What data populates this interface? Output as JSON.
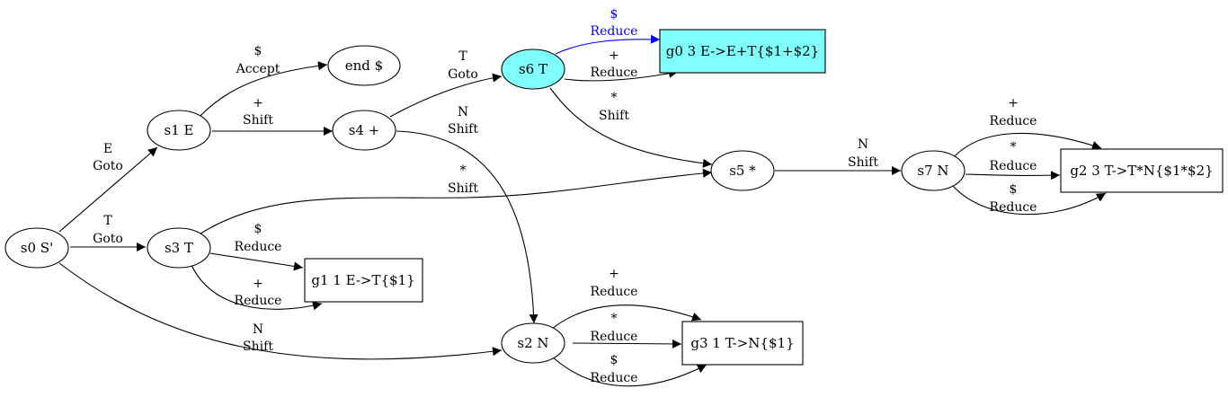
{
  "colors": {
    "highlight_fill": "#80FFFF",
    "highlight_edge": "#0000FF",
    "default_stroke": "#000000",
    "background": "#FFFFFF"
  },
  "nodes": {
    "s0": "s0 S'",
    "s1": "s1 E",
    "s3": "s3 T",
    "s4": "s4 +",
    "s6": "s6 T",
    "s5": "s5 *",
    "s7": "s7 N",
    "s2": "s2 N",
    "end": "end $",
    "g0": "g0 3 E->E+T{$1+$2}",
    "g1": "g1 1 E->T{$1}",
    "g2": "g2 3 T->T*N{$1*$2}",
    "g3": "g3 1 T->N{$1}"
  },
  "edges": {
    "s0_s1": {
      "symbol": "E",
      "action": "Goto"
    },
    "s0_s3": {
      "symbol": "T",
      "action": "Goto"
    },
    "s0_s2": {
      "symbol": "N",
      "action": "Shift"
    },
    "s1_end": {
      "symbol": "$",
      "action": "Accept"
    },
    "s1_s4": {
      "symbol": "+",
      "action": "Shift"
    },
    "s4_s6": {
      "symbol": "T",
      "action": "Goto"
    },
    "s4_s2": {
      "symbol": "N",
      "action": "Shift"
    },
    "s3_s5": {
      "symbol": "*",
      "action": "Shift"
    },
    "s3_g1_dollar": {
      "symbol": "$",
      "action": "Reduce"
    },
    "s3_g1_plus": {
      "symbol": "+",
      "action": "Reduce"
    },
    "s6_g0_dollar": {
      "symbol": "$",
      "action": "Reduce"
    },
    "s6_g0_plus": {
      "symbol": "+",
      "action": "Reduce"
    },
    "s6_s5": {
      "symbol": "*",
      "action": "Shift"
    },
    "s5_s7": {
      "symbol": "N",
      "action": "Shift"
    },
    "s7_g2_plus": {
      "symbol": "+",
      "action": "Reduce"
    },
    "s7_g2_star": {
      "symbol": "*",
      "action": "Reduce"
    },
    "s7_g2_dollar": {
      "symbol": "$",
      "action": "Reduce"
    },
    "s2_g3_plus": {
      "symbol": "+",
      "action": "Reduce"
    },
    "s2_g3_star": {
      "symbol": "*",
      "action": "Reduce"
    },
    "s2_g3_dollar": {
      "symbol": "$",
      "action": "Reduce"
    }
  }
}
